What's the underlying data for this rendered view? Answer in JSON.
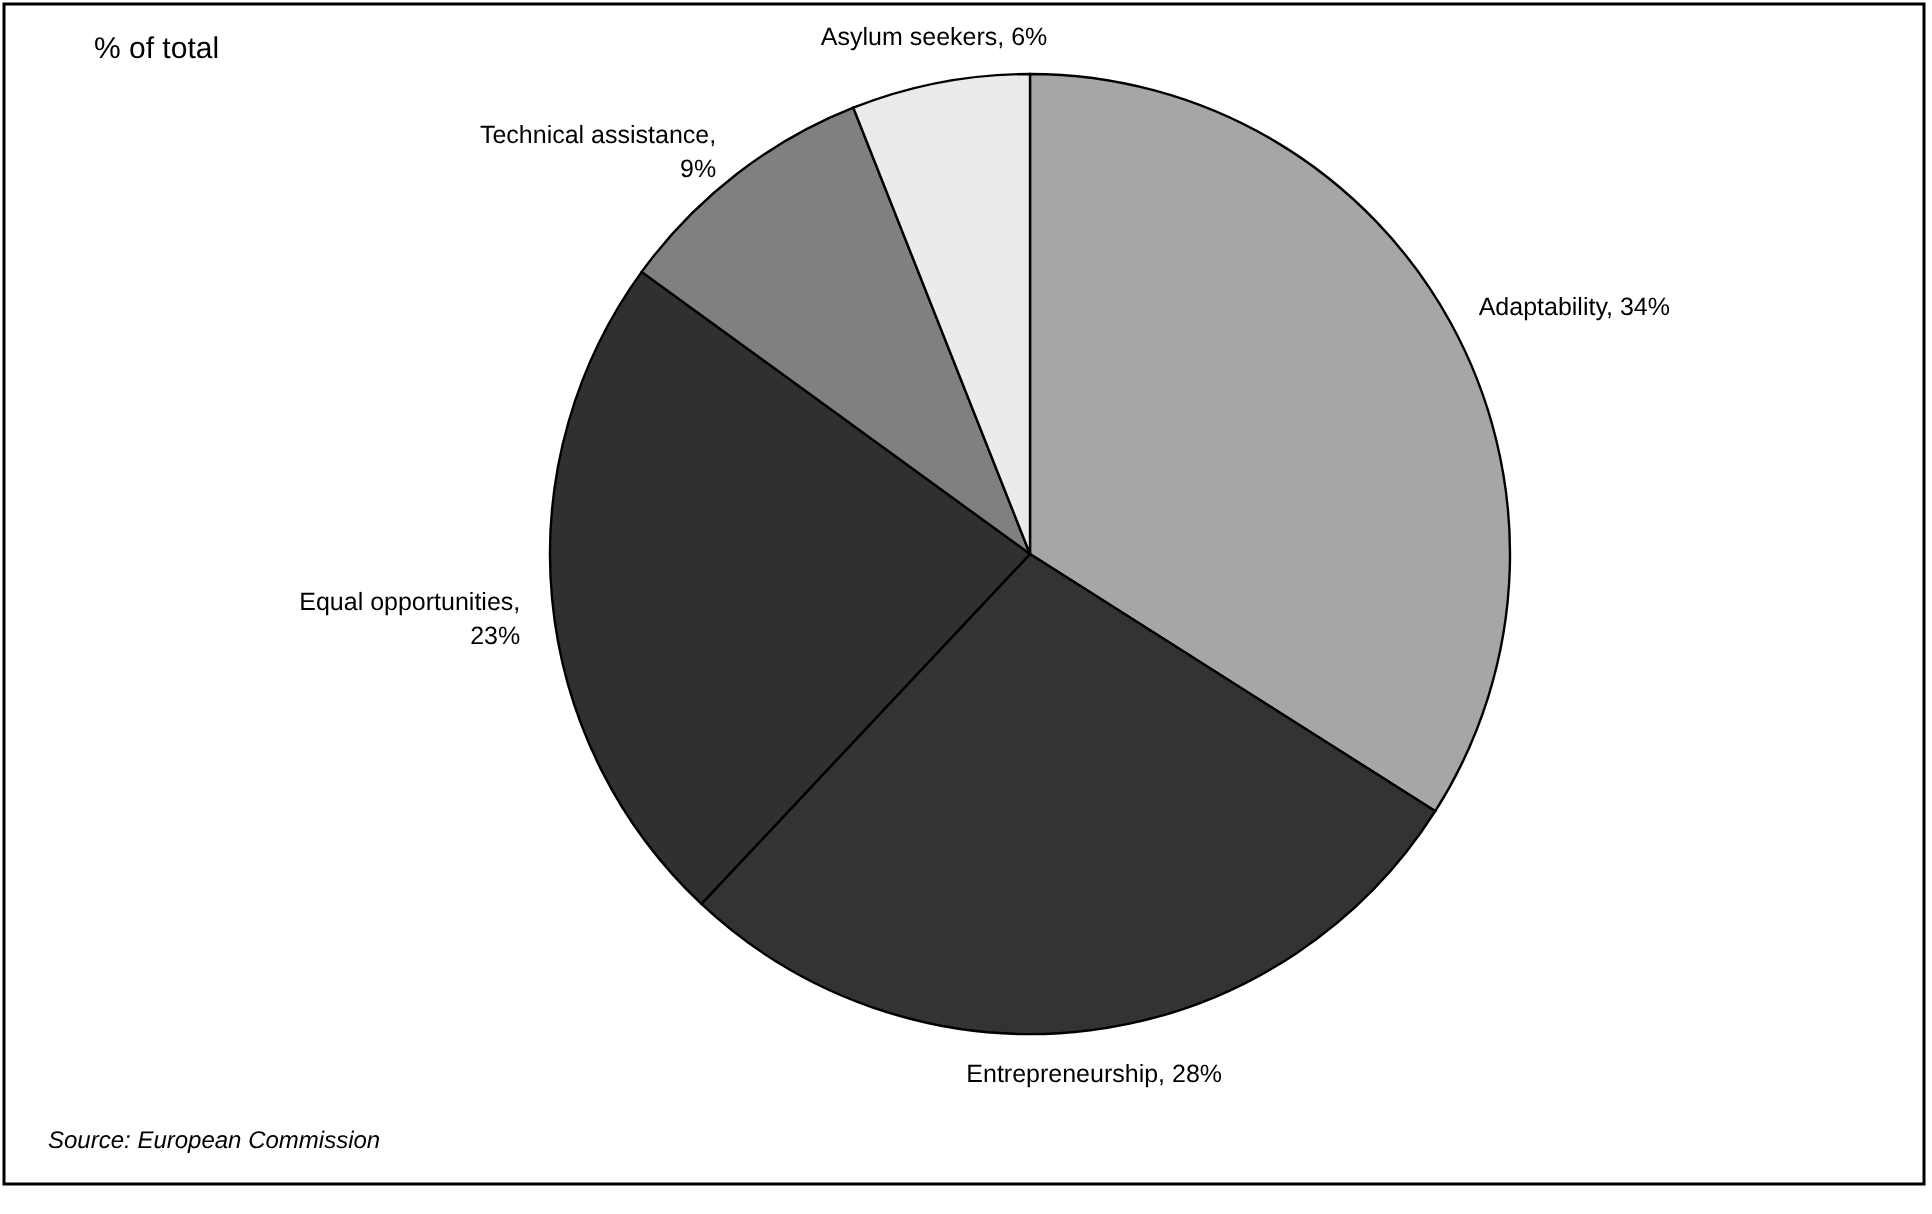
{
  "chart_data": {
    "type": "pie",
    "title": "% of total",
    "categories": [
      "Adaptability",
      "Entrepreneurship",
      "Equal opportunities",
      "Technical assistance",
      "Asylum seekers"
    ],
    "values": [
      34,
      28,
      23,
      9,
      6
    ],
    "value_labels": [
      ", 34%",
      ", 28%",
      ",\n23%",
      ",\n9%",
      ", 6%"
    ],
    "colors": [
      "#a6a6a6",
      "#333333",
      "#303030",
      "#808080",
      "#ebebeb"
    ],
    "annotations": [
      "Source: European Commission"
    ]
  }
}
